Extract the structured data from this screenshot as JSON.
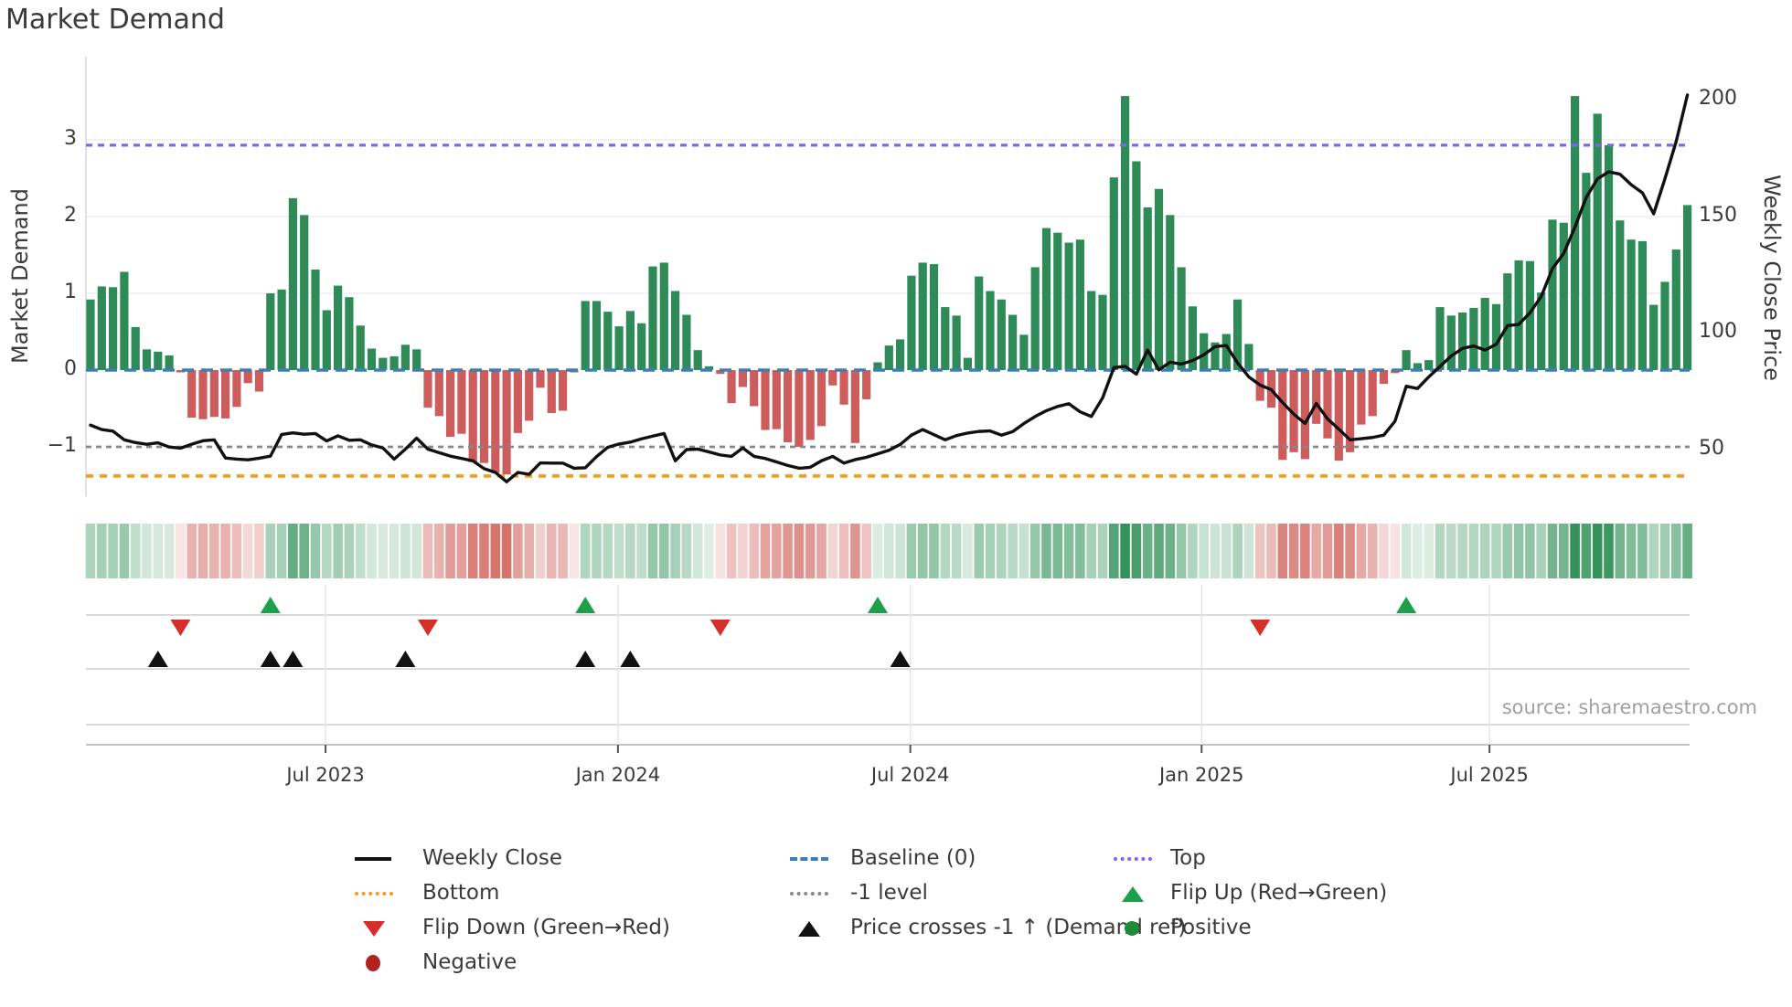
{
  "title": "Market Demand",
  "source": "source: sharemaestro.com",
  "y_axis": {
    "label": "Market Demand",
    "ticks": [
      "3",
      "2",
      "1",
      "0",
      "−1"
    ],
    "tick_values": [
      3,
      2,
      1,
      0,
      -1
    ]
  },
  "y2_axis": {
    "label": "Weekly Close Price",
    "ticks": [
      "200",
      "150",
      "100",
      "50"
    ],
    "tick_values": [
      200,
      150,
      100,
      50
    ]
  },
  "x_axis": {
    "ticks": [
      {
        "label": "Jul 2023",
        "week": 20.9
      },
      {
        "label": "Jan 2024",
        "week": 46.9
      },
      {
        "label": "Jul 2024",
        "week": 72.9
      },
      {
        "label": "Jan 2025",
        "week": 98.8
      },
      {
        "label": "Jul 2025",
        "week": 124.4
      }
    ]
  },
  "colors": {
    "positive_bar": "#2E8B57",
    "negative_bar": "#CD5C5C",
    "price_line": "#111111",
    "baseline": "#3C7FB8",
    "top_level": "#7B68EE",
    "bottom_level": "#F59A23",
    "minus_one_level": "#888888",
    "flip_up_marker": "#1CA14A",
    "flip_down_marker": "#D62F2A",
    "price_cross_marker": "#111111",
    "grid": "#ECECF4",
    "panel_line": "#CDCDCD",
    "axis_line": "#C4C4C4",
    "spine": "#D8D8E0"
  },
  "chart_data": {
    "type": "bar+line",
    "x_unit": "weeks",
    "weeks_total": 143,
    "left_ylim": [
      -1.65,
      4.08
    ],
    "right_ylim": [
      30,
      218
    ],
    "levels": {
      "top": 2.93,
      "baseline": 0,
      "minus_one": -1,
      "bottom": -1.38
    },
    "series": [
      {
        "name": "Market Demand",
        "type": "bar",
        "axis": "left",
        "values": [
          0.92,
          1.09,
          1.08,
          1.28,
          0.56,
          0.27,
          0.24,
          0.19,
          -0.03,
          -0.62,
          -0.64,
          -0.61,
          -0.63,
          -0.48,
          -0.17,
          -0.28,
          1.0,
          1.05,
          2.24,
          2.02,
          1.31,
          0.78,
          1.1,
          0.95,
          0.58,
          0.28,
          0.16,
          0.18,
          0.33,
          0.27,
          -0.49,
          -0.6,
          -0.87,
          -0.83,
          -1.2,
          -1.21,
          -1.34,
          -1.36,
          -0.82,
          -0.66,
          -0.23,
          -0.56,
          -0.53,
          -0.03,
          0.9,
          0.9,
          0.76,
          0.57,
          0.77,
          0.61,
          1.35,
          1.4,
          1.03,
          0.72,
          0.26,
          0.05,
          -0.05,
          -0.43,
          -0.22,
          -0.47,
          -0.78,
          -0.77,
          -0.94,
          -1.0,
          -0.91,
          -0.73,
          -0.2,
          -0.45,
          -0.95,
          -0.38,
          0.1,
          0.32,
          0.4,
          1.23,
          1.4,
          1.38,
          0.82,
          0.71,
          0.16,
          1.22,
          1.03,
          0.92,
          0.72,
          0.46,
          1.34,
          1.85,
          1.79,
          1.66,
          1.7,
          1.03,
          0.98,
          2.51,
          3.57,
          2.72,
          2.12,
          2.36,
          2.02,
          1.34,
          0.83,
          0.48,
          0.36,
          0.47,
          0.92,
          0.34,
          -0.4,
          -0.49,
          -1.17,
          -1.07,
          -1.16,
          -0.7,
          -0.89,
          -1.18,
          -1.07,
          -0.71,
          -0.6,
          -0.18,
          -0.04,
          0.26,
          0.09,
          0.13,
          0.82,
          0.71,
          0.75,
          0.81,
          0.94,
          0.86,
          1.26,
          1.43,
          1.42,
          1.01,
          1.96,
          1.92,
          3.57,
          2.57,
          3.34,
          2.93,
          1.95,
          1.7,
          1.68,
          0.85,
          1.15,
          1.57,
          2.15
        ]
      },
      {
        "name": "Weekly Close",
        "type": "line",
        "axis": "right",
        "values": [
          60.3,
          58.4,
          57.7,
          54.0,
          52.8,
          52.1,
          52.7,
          50.9,
          50.4,
          52.1,
          53.6,
          54.0,
          46.2,
          45.7,
          45.4,
          46.1,
          47.0,
          56.3,
          57.0,
          56.4,
          56.7,
          53.5,
          55.7,
          53.8,
          54.0,
          51.8,
          50.5,
          45.7,
          50.0,
          54.7,
          50.0,
          48.5,
          47.0,
          46.0,
          45.0,
          41.6,
          40.0,
          36.0,
          40.0,
          39.2,
          44.1,
          44.0,
          44.0,
          41.8,
          42.0,
          46.8,
          50.8,
          52.2,
          53.0,
          54.4,
          55.6,
          56.7,
          45.0,
          49.8,
          50.0,
          48.8,
          47.5,
          46.9,
          50.5,
          46.9,
          46.0,
          44.5,
          43.0,
          41.8,
          42.2,
          45.0,
          46.9,
          44.0,
          45.5,
          46.5,
          48.0,
          49.5,
          52.0,
          56.0,
          58.4,
          56.2,
          54.0,
          55.8,
          56.9,
          57.6,
          57.8,
          56.0,
          57.5,
          61.0,
          64.0,
          66.5,
          68.3,
          69.5,
          66.0,
          64.0,
          72.0,
          85.0,
          85.5,
          82.2,
          92.5,
          84.0,
          87.3,
          86.5,
          88.0,
          90.5,
          94.0,
          94.5,
          87.0,
          81.0,
          77.5,
          75.5,
          70.0,
          65.0,
          61.0,
          69.6,
          63.0,
          58.6,
          54.0,
          54.5,
          55.0,
          56.0,
          62.0,
          77.0,
          76.0,
          81.0,
          85.5,
          90.0,
          93.2,
          94.3,
          92.5,
          95.0,
          103.0,
          103.5,
          108.5,
          115.5,
          127.5,
          134.0,
          145.3,
          158.0,
          166.0,
          169.0,
          168.0,
          163.5,
          160.0,
          151.0,
          166.0,
          182.0,
          202.0
        ]
      }
    ],
    "heatmap": {
      "note": "one cell per week, green tint for positive demand, red tint for negative, intensity scales with magnitude"
    },
    "markers": {
      "flip_up_weeks": [
        16,
        44,
        70,
        117
      ],
      "flip_down_weeks": [
        8,
        30,
        56,
        104
      ],
      "price_cross_weeks": [
        6,
        16,
        18,
        28,
        44,
        48,
        72
      ]
    }
  },
  "legend": {
    "columns": [
      {
        "items": [
          {
            "icon": "weekly-close-line",
            "label": "Weekly Close"
          },
          {
            "icon": "bottom-dotted",
            "label": "Bottom"
          },
          {
            "icon": "flip-down-triangle",
            "label": "Flip Down (Green→Red)"
          },
          {
            "icon": "negative-circle",
            "label": "Negative"
          }
        ]
      },
      {
        "items": [
          {
            "icon": "baseline-dashed",
            "label": "Baseline (0)"
          },
          {
            "icon": "minus-one-dotted",
            "label": "-1 level"
          },
          {
            "icon": "price-cross-triangle",
            "label": "Price crosses -1 ↑ (Demand ref)"
          }
        ]
      },
      {
        "items": [
          {
            "icon": "top-dotted",
            "label": "Top"
          },
          {
            "icon": "flip-up-triangle",
            "label": "Flip Up (Red→Green)"
          },
          {
            "icon": "positive-circle",
            "label": "Positive"
          }
        ]
      }
    ]
  }
}
